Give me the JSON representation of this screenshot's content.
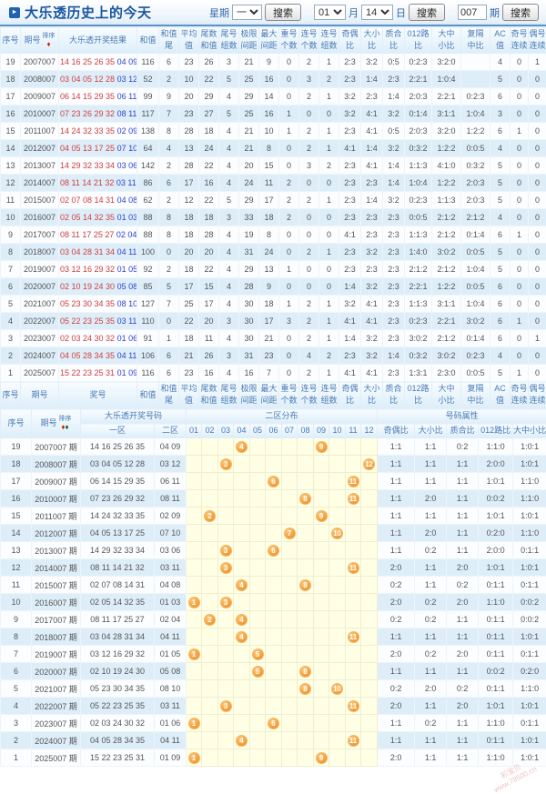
{
  "header": {
    "title": "大乐透历史上的今天",
    "week_label": "星期",
    "week_value": "一",
    "search_label": "搜索",
    "month_value": "01",
    "month_label": "月",
    "day_value": "14",
    "day_label": "日",
    "issue_value": "007",
    "issue_label": "期",
    "sort_label": "排序"
  },
  "table1": {
    "header_cols": [
      [
        "序号"
      ],
      [
        "期号"
      ],
      [
        "大乐透开奖结果"
      ],
      [
        "和值"
      ],
      [
        "和值",
        "尾"
      ],
      [
        "平均",
        "值"
      ],
      [
        "尾数",
        "和值"
      ],
      [
        "尾号",
        "组数"
      ],
      [
        "极限",
        "间距"
      ],
      [
        "最大",
        "间距"
      ],
      [
        "重号",
        "个数"
      ],
      [
        "连号",
        "个数"
      ],
      [
        "连号",
        "组数"
      ],
      [
        "奇偶",
        "比"
      ],
      [
        "大小",
        "比"
      ],
      [
        "质合",
        "比"
      ],
      [
        "012路",
        "比"
      ],
      [
        "大中",
        "小比"
      ],
      [
        "复隔",
        "中比"
      ],
      [
        "AC值"
      ],
      [
        "奇号",
        "连续"
      ],
      [
        "偶号",
        "连续"
      ]
    ],
    "footer_cols": [
      [
        "序号"
      ],
      [
        "期号"
      ],
      [
        "奖号"
      ],
      [
        "和值"
      ],
      [
        "和值",
        "尾"
      ],
      [
        "平均",
        "值"
      ],
      [
        "尾数",
        "和值"
      ],
      [
        "尾号",
        "组数"
      ],
      [
        "极限",
        "间距"
      ],
      [
        "最大",
        "间距"
      ],
      [
        "重号",
        "个数"
      ],
      [
        "连号",
        "个数"
      ],
      [
        "连号",
        "组数"
      ],
      [
        "奇偶",
        "比"
      ],
      [
        "大小",
        "比"
      ],
      [
        "质合",
        "比"
      ],
      [
        "012路",
        "比"
      ],
      [
        "大中",
        "小比"
      ],
      [
        "复隔",
        "中比"
      ],
      [
        "AC值"
      ],
      [
        "奇号",
        "连续"
      ],
      [
        "偶号",
        "连续"
      ]
    ],
    "rows": [
      {
        "seq": "19",
        "issue": "2007007",
        "front": "14 16 25 26 35",
        "back": "04 09",
        "vals": [
          "116",
          "6",
          "23",
          "26",
          "3",
          "21",
          "9",
          "0",
          "2",
          "1",
          "2:3",
          "3:2",
          "0:5",
          "0:2:3",
          "3:2:0",
          "",
          "4",
          "0",
          "1"
        ]
      },
      {
        "seq": "18",
        "issue": "2008007",
        "front": "03 04 05 12 28",
        "back": "03 12",
        "vals": [
          "52",
          "2",
          "10",
          "22",
          "5",
          "25",
          "16",
          "0",
          "3",
          "2",
          "2:3",
          "1:4",
          "2:3",
          "2:2:1",
          "1:0:4",
          "",
          "5",
          "0",
          "0"
        ]
      },
      {
        "seq": "17",
        "issue": "2009007",
        "front": "06 14 15 29 35",
        "back": "06 11",
        "vals": [
          "99",
          "9",
          "20",
          "29",
          "4",
          "29",
          "14",
          "0",
          "2",
          "1",
          "3:2",
          "2:3",
          "1:4",
          "2:0:3",
          "2:2:1",
          "0:2:3",
          "6",
          "0",
          "0"
        ]
      },
      {
        "seq": "16",
        "issue": "2010007",
        "front": "07 23 26 29 32",
        "back": "08 11",
        "vals": [
          "117",
          "7",
          "23",
          "27",
          "5",
          "25",
          "16",
          "1",
          "0",
          "0",
          "3:2",
          "4:1",
          "3:2",
          "0:1:4",
          "3:1:1",
          "1:0:4",
          "3",
          "0",
          "0"
        ]
      },
      {
        "seq": "15",
        "issue": "2011007",
        "front": "14 24 32 33 35",
        "back": "02 09",
        "vals": [
          "138",
          "8",
          "28",
          "18",
          "4",
          "21",
          "10",
          "1",
          "2",
          "1",
          "2:3",
          "4:1",
          "0:5",
          "2:0:3",
          "3:2:0",
          "1:2:2",
          "6",
          "1",
          "0"
        ]
      },
      {
        "seq": "14",
        "issue": "2012007",
        "front": "04 05 13 17 25",
        "back": "07 10",
        "vals": [
          "64",
          "4",
          "13",
          "24",
          "4",
          "21",
          "8",
          "0",
          "2",
          "1",
          "4:1",
          "1:4",
          "3:2",
          "0:3:2",
          "1:2:2",
          "0:0:5",
          "4",
          "0",
          "0"
        ]
      },
      {
        "seq": "13",
        "issue": "2013007",
        "front": "14 29 32 33 34",
        "back": "03 06",
        "vals": [
          "142",
          "2",
          "28",
          "22",
          "4",
          "20",
          "15",
          "0",
          "3",
          "2",
          "2:3",
          "4:1",
          "1:4",
          "1:1:3",
          "4:1:0",
          "0:3:2",
          "5",
          "0",
          "0"
        ]
      },
      {
        "seq": "12",
        "issue": "2014007",
        "front": "08 11 14 21 32",
        "back": "03 11",
        "vals": [
          "86",
          "6",
          "17",
          "16",
          "4",
          "24",
          "11",
          "2",
          "0",
          "0",
          "2:3",
          "2:3",
          "1:4",
          "1:0:4",
          "1:2:2",
          "2:0:3",
          "5",
          "0",
          "0"
        ]
      },
      {
        "seq": "11",
        "issue": "2015007",
        "front": "02 07 08 14 31",
        "back": "04 08",
        "vals": [
          "62",
          "2",
          "12",
          "22",
          "5",
          "29",
          "17",
          "2",
          "2",
          "1",
          "2:3",
          "1:4",
          "3:2",
          "0:2:3",
          "1:1:3",
          "2:0:3",
          "5",
          "0",
          "0"
        ]
      },
      {
        "seq": "10",
        "issue": "2016007",
        "front": "02 05 14 32 35",
        "back": "01 03",
        "vals": [
          "88",
          "8",
          "18",
          "18",
          "3",
          "33",
          "18",
          "2",
          "0",
          "0",
          "2:3",
          "2:3",
          "2:3",
          "0:0:5",
          "2:1:2",
          "2:1:2",
          "4",
          "0",
          "0"
        ]
      },
      {
        "seq": "9",
        "issue": "2017007",
        "front": "08 11 17 25 27",
        "back": "02 04",
        "vals": [
          "88",
          "8",
          "18",
          "28",
          "4",
          "19",
          "8",
          "0",
          "0",
          "0",
          "4:1",
          "2:3",
          "2:3",
          "1:1:3",
          "2:1:2",
          "0:1:4",
          "6",
          "1",
          "0"
        ]
      },
      {
        "seq": "8",
        "issue": "2018007",
        "front": "03 04 28 31 34",
        "back": "04 11",
        "vals": [
          "100",
          "0",
          "20",
          "20",
          "4",
          "31",
          "24",
          "0",
          "2",
          "1",
          "2:3",
          "3:2",
          "2:3",
          "1:4:0",
          "3:0:2",
          "0:0:5",
          "5",
          "0",
          "0"
        ]
      },
      {
        "seq": "7",
        "issue": "2019007",
        "front": "03 12 16 29 32",
        "back": "01 05",
        "vals": [
          "92",
          "2",
          "18",
          "22",
          "4",
          "29",
          "13",
          "1",
          "0",
          "0",
          "2:3",
          "2:3",
          "2:3",
          "2:1:2",
          "2:1:2",
          "1:0:4",
          "5",
          "0",
          "0"
        ]
      },
      {
        "seq": "6",
        "issue": "2020007",
        "front": "02 10 19 24 30",
        "back": "05 08",
        "vals": [
          "85",
          "5",
          "17",
          "15",
          "4",
          "28",
          "9",
          "0",
          "0",
          "0",
          "1:4",
          "3:2",
          "2:3",
          "2:2:1",
          "1:2:2",
          "0:0:5",
          "6",
          "0",
          "0"
        ]
      },
      {
        "seq": "5",
        "issue": "2021007",
        "front": "05 23 30 34 35",
        "back": "08 10",
        "vals": [
          "127",
          "7",
          "25",
          "17",
          "4",
          "30",
          "18",
          "1",
          "2",
          "1",
          "3:2",
          "4:1",
          "2:3",
          "1:1:3",
          "3:1:1",
          "1:0:4",
          "6",
          "0",
          "0"
        ]
      },
      {
        "seq": "4",
        "issue": "2022007",
        "front": "05 22 23 25 35",
        "back": "03 11",
        "vals": [
          "110",
          "0",
          "22",
          "20",
          "3",
          "30",
          "17",
          "3",
          "2",
          "1",
          "4:1",
          "4:1",
          "2:3",
          "0:2:3",
          "2:2:1",
          "3:0:2",
          "6",
          "1",
          "0"
        ]
      },
      {
        "seq": "3",
        "issue": "2023007",
        "front": "02 03 24 30 32",
        "back": "01 06",
        "vals": [
          "91",
          "1",
          "18",
          "11",
          "4",
          "30",
          "21",
          "0",
          "2",
          "1",
          "1:4",
          "3:2",
          "2:3",
          "3:0:2",
          "2:1:2",
          "0:1:4",
          "6",
          "0",
          "1"
        ]
      },
      {
        "seq": "2",
        "issue": "2024007",
        "front": "04 05 28 34 35",
        "back": "04 11",
        "vals": [
          "106",
          "6",
          "21",
          "26",
          "3",
          "31",
          "23",
          "0",
          "4",
          "2",
          "2:3",
          "3:2",
          "1:4",
          "0:3:2",
          "3:0:2",
          "0:2:3",
          "4",
          "0",
          "0"
        ]
      },
      {
        "seq": "1",
        "issue": "2025007",
        "front": "15 22 23 25 31",
        "back": "01 09",
        "vals": [
          "116",
          "6",
          "23",
          "16",
          "4",
          "16",
          "7",
          "0",
          "2",
          "1",
          "4:1",
          "4:1",
          "2:3",
          "1:3:1",
          "2:3:0",
          "0:0:5",
          "5",
          "1",
          "0"
        ]
      }
    ]
  },
  "table2": {
    "header": {
      "seq": "序号",
      "issue": "期号",
      "sort_label": "排序",
      "result_group": "大乐透开奖号码",
      "zone1": "一区",
      "zone2": "二区",
      "dist_group": "二区分布",
      "dist_cols": [
        "01",
        "02",
        "03",
        "04",
        "05",
        "06",
        "07",
        "08",
        "09",
        "10",
        "11",
        "12"
      ],
      "attr_group": "号码属性",
      "attr_cols": [
        "奇偶比",
        "大小比",
        "质合比",
        "012路比",
        "大中小比"
      ]
    },
    "rows": [
      {
        "seq": "19",
        "issue": "2007007 期",
        "zone1": "14 16 25 26 35",
        "zone2": "04 09",
        "balls": [
          4,
          9
        ],
        "attrs": [
          "1:1",
          "1:1",
          "0:2",
          "1:1:0",
          "1:0:1"
        ]
      },
      {
        "seq": "18",
        "issue": "2008007 期",
        "zone1": "03 04 05 12 28",
        "zone2": "03 12",
        "balls": [
          3,
          12
        ],
        "attrs": [
          "1:1",
          "1:1",
          "1:1",
          "2:0:0",
          "1:0:1"
        ]
      },
      {
        "seq": "17",
        "issue": "2009007 期",
        "zone1": "06 14 15 29 35",
        "zone2": "06 11",
        "balls": [
          6,
          11
        ],
        "attrs": [
          "1:1",
          "1:1",
          "1:1",
          "1:0:1",
          "1:1:0"
        ]
      },
      {
        "seq": "16",
        "issue": "2010007 期",
        "zone1": "07 23 26 29 32",
        "zone2": "08 11",
        "balls": [
          8,
          11
        ],
        "attrs": [
          "1:1",
          "2:0",
          "1:1",
          "0:0:2",
          "1:1:0"
        ]
      },
      {
        "seq": "15",
        "issue": "2011007 期",
        "zone1": "14 24 32 33 35",
        "zone2": "02 09",
        "balls": [
          2,
          9
        ],
        "attrs": [
          "1:1",
          "1:1",
          "1:1",
          "1:0:1",
          "1:0:1"
        ]
      },
      {
        "seq": "14",
        "issue": "2012007 期",
        "zone1": "04 05 13 17 25",
        "zone2": "07 10",
        "balls": [
          7,
          10
        ],
        "attrs": [
          "1:1",
          "2:0",
          "1:1",
          "0:2:0",
          "1:1:0"
        ]
      },
      {
        "seq": "13",
        "issue": "2013007 期",
        "zone1": "14 29 32 33 34",
        "zone2": "03 06",
        "balls": [
          3,
          6
        ],
        "attrs": [
          "1:1",
          "0:2",
          "1:1",
          "2:0:0",
          "0:1:1"
        ]
      },
      {
        "seq": "12",
        "issue": "2014007 期",
        "zone1": "08 11 14 21 32",
        "zone2": "03 11",
        "balls": [
          3,
          11
        ],
        "attrs": [
          "2:0",
          "1:1",
          "2:0",
          "1:0:1",
          "1:0:1"
        ]
      },
      {
        "seq": "11",
        "issue": "2015007 期",
        "zone1": "02 07 08 14 31",
        "zone2": "04 08",
        "balls": [
          4,
          8
        ],
        "attrs": [
          "0:2",
          "1:1",
          "0:2",
          "0:1:1",
          "0:1:1"
        ]
      },
      {
        "seq": "10",
        "issue": "2016007 期",
        "zone1": "02 05 14 32 35",
        "zone2": "01 03",
        "balls": [
          1,
          3
        ],
        "attrs": [
          "2:0",
          "0:2",
          "2:0",
          "1:1:0",
          "0:0:2"
        ]
      },
      {
        "seq": "9",
        "issue": "2017007 期",
        "zone1": "08 11 17 25 27",
        "zone2": "02 04",
        "balls": [
          2,
          4
        ],
        "attrs": [
          "0:2",
          "0:2",
          "1:1",
          "0:1:1",
          "0:0:2"
        ]
      },
      {
        "seq": "8",
        "issue": "2018007 期",
        "zone1": "03 04 28 31 34",
        "zone2": "04 11",
        "balls": [
          4,
          11
        ],
        "attrs": [
          "1:1",
          "1:1",
          "1:1",
          "0:1:1",
          "1:0:1"
        ]
      },
      {
        "seq": "7",
        "issue": "2019007 期",
        "zone1": "03 12 16 29 32",
        "zone2": "01 05",
        "balls": [
          1,
          5
        ],
        "attrs": [
          "2:0",
          "0:2",
          "2:0",
          "0:1:1",
          "0:1:1"
        ]
      },
      {
        "seq": "6",
        "issue": "2020007 期",
        "zone1": "02 10 19 24 30",
        "zone2": "05 08",
        "balls": [
          5,
          8
        ],
        "attrs": [
          "1:1",
          "1:1",
          "1:1",
          "0:0:2",
          "0:2:0"
        ]
      },
      {
        "seq": "5",
        "issue": "2021007 期",
        "zone1": "05 23 30 34 35",
        "zone2": "08 10",
        "balls": [
          8,
          10
        ],
        "attrs": [
          "0:2",
          "2:0",
          "0:2",
          "0:1:1",
          "1:1:0"
        ]
      },
      {
        "seq": "4",
        "issue": "2022007 期",
        "zone1": "05 22 23 25 35",
        "zone2": "03 11",
        "balls": [
          3,
          11
        ],
        "attrs": [
          "2:0",
          "1:1",
          "2:0",
          "1:0:1",
          "1:0:1"
        ]
      },
      {
        "seq": "3",
        "issue": "2023007 期",
        "zone1": "02 03 24 30 32",
        "zone2": "01 06",
        "balls": [
          1,
          6
        ],
        "attrs": [
          "1:1",
          "0:2",
          "1:1",
          "1:1:0",
          "0:1:1"
        ]
      },
      {
        "seq": "2",
        "issue": "2024007 期",
        "zone1": "04 05 28 34 35",
        "zone2": "04 11",
        "balls": [
          4,
          11
        ],
        "attrs": [
          "1:1",
          "1:1",
          "1:1",
          "0:1:1",
          "1:0:1"
        ]
      },
      {
        "seq": "1",
        "issue": "2025007 期",
        "zone1": "15 22 23 25 31",
        "zone2": "01 09",
        "balls": [
          1,
          9
        ],
        "attrs": [
          "2:0",
          "1:1",
          "1:1",
          "1:1:0",
          "1:0:1"
        ]
      }
    ]
  },
  "watermark": {
    "line1": "彩宝贝",
    "line2": "www.78500.cn"
  }
}
